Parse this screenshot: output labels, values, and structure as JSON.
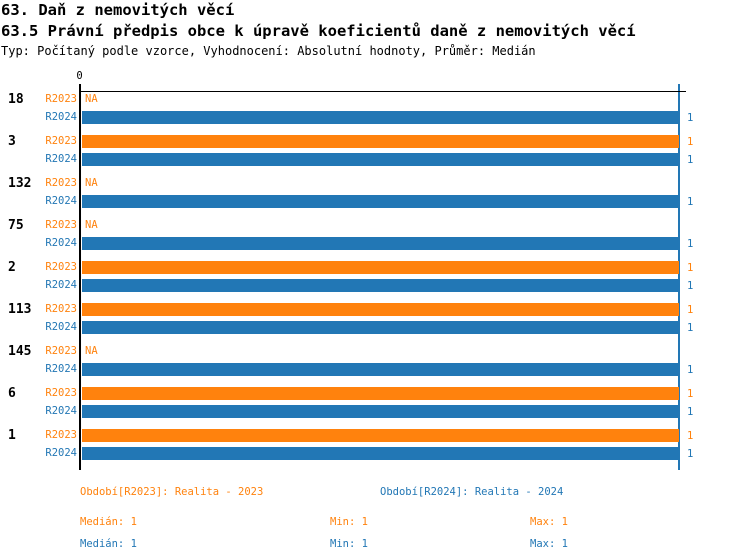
{
  "header": {
    "title": "63. Daň z nemovitých věcí",
    "subtitle": "63.5 Právní předpis obce k úpravě koeficientů daně z nemovitých věcí",
    "meta": "Typ: Počítaný podle vzorce, Vyhodnocení: Absolutní hodnoty, Průměr: Medián"
  },
  "colors": {
    "r2023_orange": "#FF820D",
    "r2024_blue": "#2277B5",
    "axis_black": "#000000"
  },
  "chart_data": {
    "type": "bar",
    "orientation": "horizontal",
    "title": "63.5 Právní předpis obce k úpravě koeficientů daně z nemovitých věcí",
    "xlim": [
      0,
      1
    ],
    "x_tick_labels": [
      "0"
    ],
    "grid": false,
    "na_label": "NA",
    "reference_line": {
      "value": 1,
      "color": "#2277B5"
    },
    "categories": [
      "18",
      "3",
      "132",
      "75",
      "2",
      "113",
      "145",
      "6",
      "1"
    ],
    "series": [
      {
        "id": "r2023",
        "label": "R2023",
        "color": "#FF820D",
        "values": [
          null,
          1,
          null,
          null,
          1,
          1,
          null,
          1,
          1
        ]
      },
      {
        "id": "r2024",
        "label": "R2024",
        "color": "#2277B5",
        "values": [
          1,
          1,
          1,
          1,
          1,
          1,
          1,
          1,
          1
        ]
      }
    ]
  },
  "legend": {
    "r2023": {
      "period": "Období[R2023]: Realita - 2023",
      "median": "Medián: 1",
      "min": "Min: 1",
      "max": "Max: 1"
    },
    "r2024": {
      "period": "Období[R2024]: Realita - 2024",
      "median": "Medián: 1",
      "min": "Min: 1",
      "max": "Max: 1"
    }
  }
}
